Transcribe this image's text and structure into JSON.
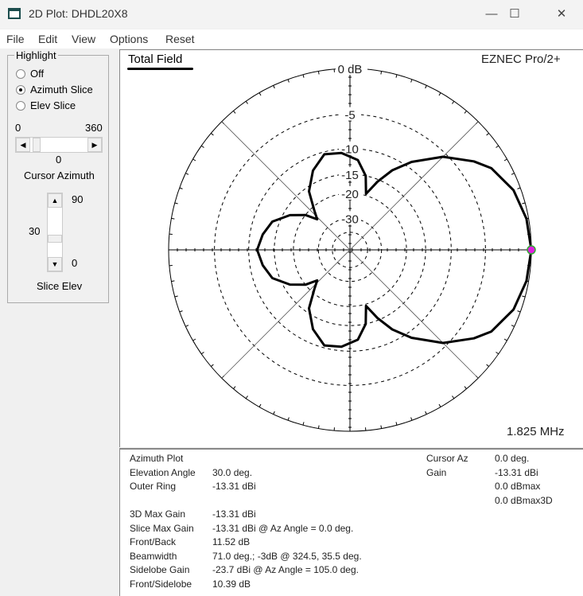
{
  "window": {
    "title": "2D Plot: DHDL20X8",
    "minimize": "—",
    "maximize": "☐",
    "close": "✕"
  },
  "menu": [
    "File",
    "Edit",
    "View",
    "Options",
    "Reset"
  ],
  "highlight": {
    "label": "Highlight",
    "options": [
      {
        "label": "Off",
        "selected": false
      },
      {
        "label": "Azimuth Slice",
        "selected": true
      },
      {
        "label": "Elev Slice",
        "selected": false
      }
    ]
  },
  "cursor_azimuth": {
    "min": "0",
    "max": "360",
    "value": "0",
    "label": "Cursor Azimuth",
    "fraction": 0
  },
  "slice_elev": {
    "max": "90",
    "min": "0",
    "value": "30",
    "label": "Slice Elev",
    "fraction": 0.333
  },
  "plot": {
    "title": "Total Field",
    "brand": "EZNEC Pro/2+",
    "frequency": "1.825 MHz",
    "ring_labels": [
      "0 dB",
      "-5",
      "-10",
      "-15",
      "-20",
      "-30"
    ],
    "cursor_color": "#e020e0"
  },
  "chart_data": {
    "type": "polar",
    "scale": "ARRL log",
    "rings_db": [
      0,
      -5,
      -10,
      -15,
      -20,
      -30,
      -40
    ],
    "az_deg": [
      0,
      10,
      20,
      30,
      35.5,
      45,
      55,
      62,
      68,
      74,
      78,
      85,
      95,
      105,
      115,
      125,
      132,
      137,
      142,
      150,
      160,
      170,
      180
    ],
    "gain_dbmax": [
      0,
      -0.2,
      -0.7,
      -1.8,
      -3,
      -5.5,
      -9,
      -12,
      -15.5,
      -19.5,
      -15,
      -12,
      -10.7,
      -10.4,
      -12.5,
      -16,
      -21,
      -24,
      -20,
      -16.5,
      -13.5,
      -12.3,
      -11.5
    ],
    "symmetric": true
  },
  "info": {
    "rows": [
      [
        "Azimuth Plot",
        ""
      ],
      [
        "Elevation Angle",
        "30.0 deg."
      ],
      [
        "Outer Ring",
        "-13.31 dBi"
      ],
      [
        "",
        ""
      ],
      [
        "3D Max Gain",
        "-13.31 dBi"
      ],
      [
        "Slice Max Gain",
        "-13.31 dBi @ Az Angle = 0.0 deg."
      ],
      [
        "Front/Back",
        "11.52 dB"
      ],
      [
        "Beamwidth",
        "71.0 deg.; -3dB @ 324.5, 35.5 deg."
      ],
      [
        "Sidelobe Gain",
        "-23.7 dBi @ Az Angle = 105.0 deg."
      ],
      [
        "Front/Sidelobe",
        "10.39 dB"
      ]
    ],
    "cursor": [
      [
        "Cursor Az",
        "0.0 deg."
      ],
      [
        "Gain",
        "-13.31 dBi"
      ],
      [
        "",
        "0.0 dBmax"
      ],
      [
        "",
        "0.0 dBmax3D"
      ]
    ]
  }
}
